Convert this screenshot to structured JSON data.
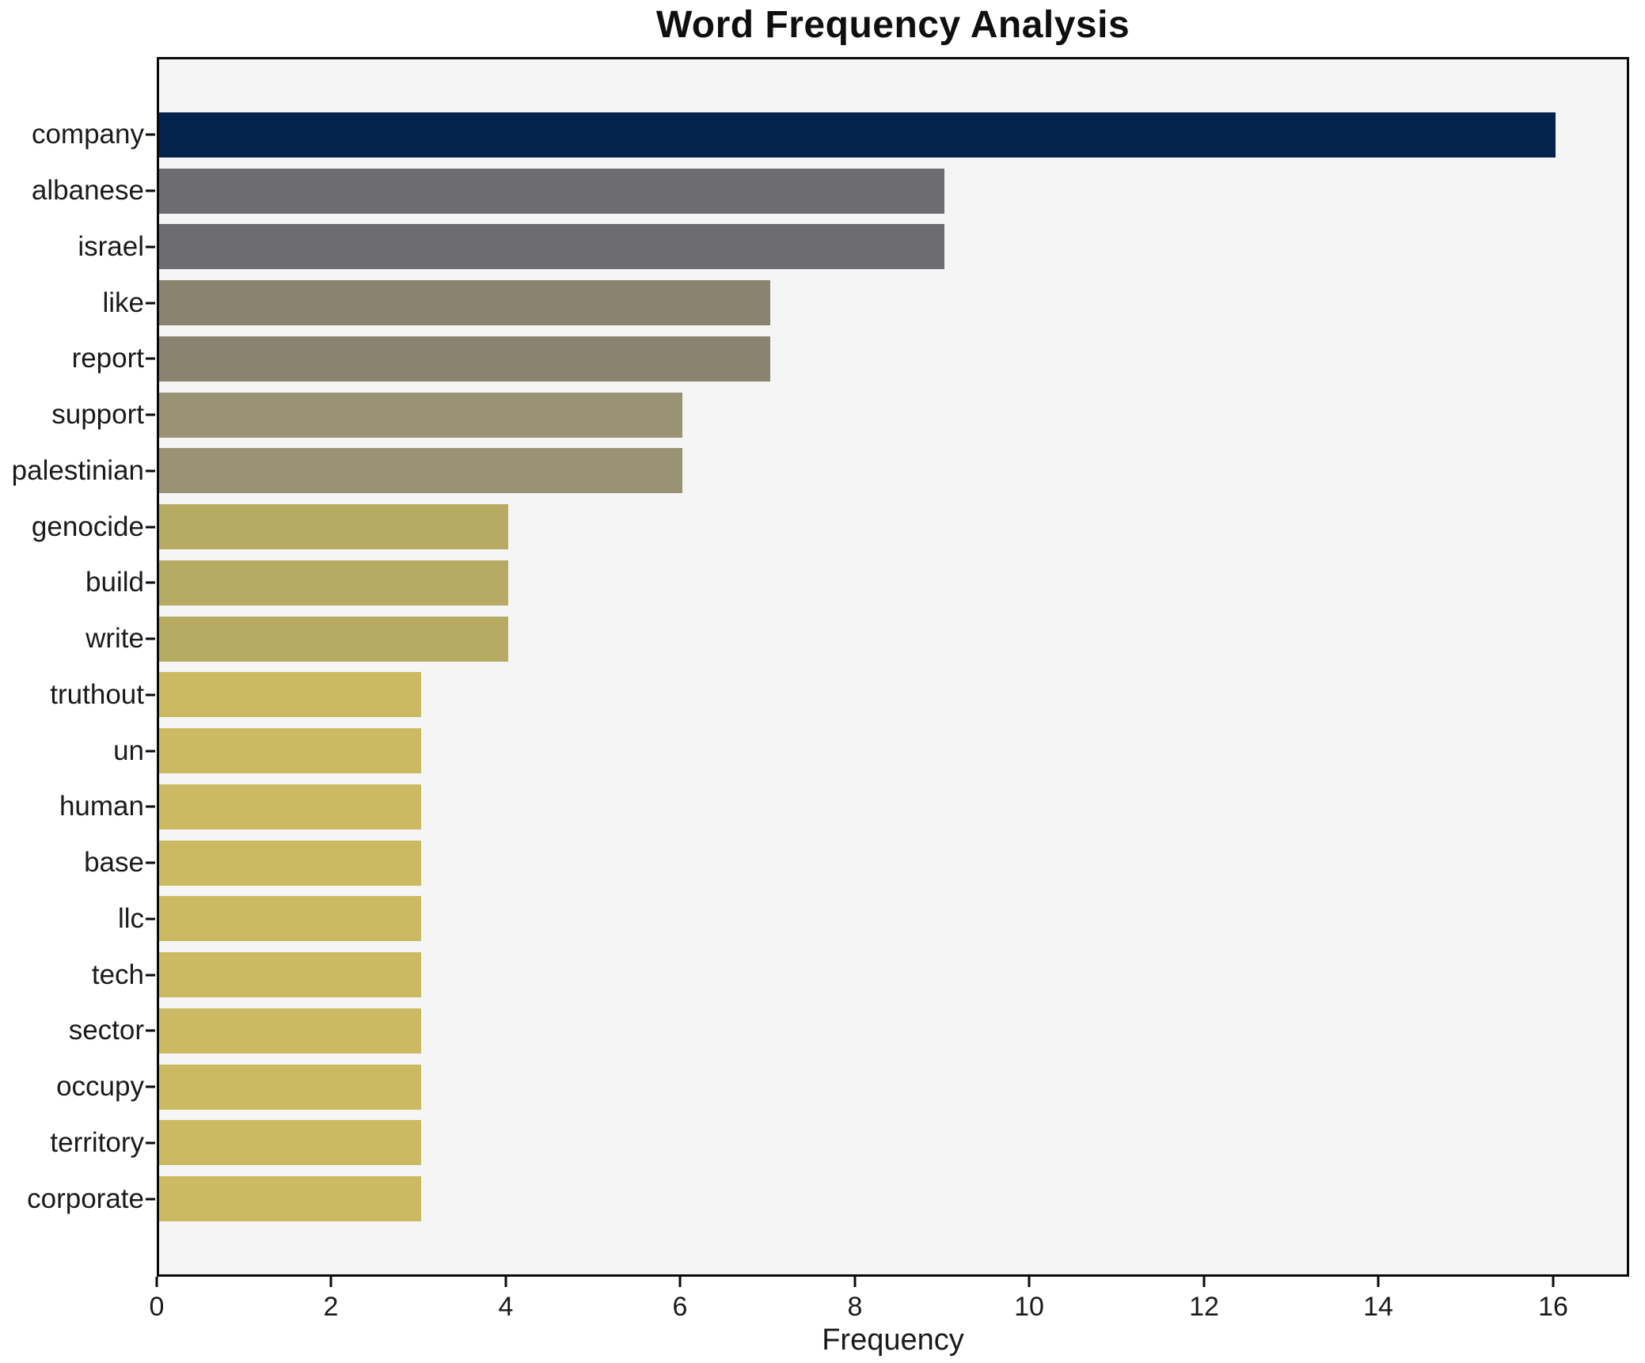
{
  "chart_data": {
    "type": "bar",
    "orientation": "horizontal",
    "title": "Word Frequency Analysis",
    "xlabel": "Frequency",
    "ylabel": "",
    "categories": [
      "company",
      "albanese",
      "israel",
      "like",
      "report",
      "support",
      "palestinian",
      "genocide",
      "build",
      "write",
      "truthout",
      "un",
      "human",
      "base",
      "llc",
      "tech",
      "sector",
      "occupy",
      "territory",
      "corporate"
    ],
    "values": [
      16,
      9,
      9,
      7,
      7,
      6,
      6,
      4,
      4,
      4,
      3,
      3,
      3,
      3,
      3,
      3,
      3,
      3,
      3,
      3
    ],
    "bar_colors": [
      "#03224c",
      "#6d6d71",
      "#6d6d71",
      "#89836f",
      "#89836f",
      "#9a9274",
      "#9a9274",
      "#b7ab63",
      "#b7ab63",
      "#b7ab63",
      "#ccba62",
      "#ccba62",
      "#ccba62",
      "#ccba62",
      "#ccba62",
      "#ccba62",
      "#ccba62",
      "#ccba62",
      "#ccba62",
      "#ccba62"
    ],
    "xticks": [
      0,
      2,
      4,
      6,
      8,
      10,
      12,
      14,
      16
    ],
    "xlim": [
      0,
      16.82
    ],
    "grid": false,
    "legend": null,
    "plot_background": "#f5f5f6",
    "page_background": "#ffffff",
    "axis_border_color": "#0a0a0a"
  }
}
